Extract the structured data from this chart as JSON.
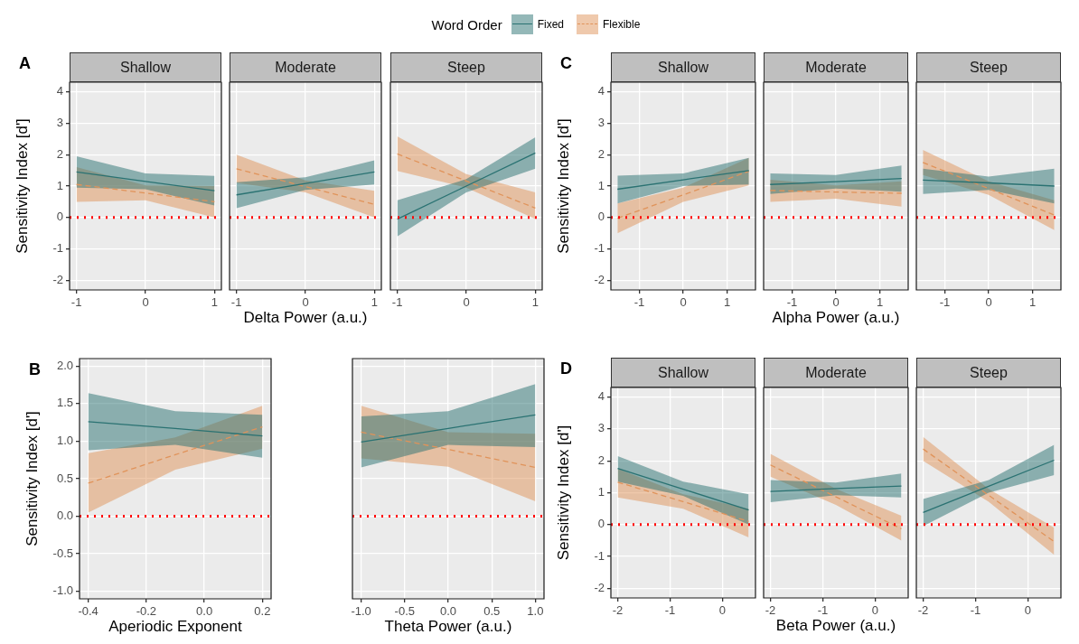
{
  "chart_data": [
    {
      "type": "line",
      "title": "Shallow",
      "ylabel": "Sensitivity Index [d']",
      "annotations": [
        "A"
      ],
      "legend": "top",
      "legend_title": "Word Order",
      "xlim": [
        -1.1,
        1.1
      ],
      "xticks": [
        -1,
        0,
        1
      ],
      "ylim": [
        -2.3,
        4.3
      ],
      "yticks": [
        -2,
        -1,
        0,
        1,
        2,
        3,
        4
      ],
      "grid": true,
      "ref_lines": [
        {
          "axis": "y",
          "value": 0,
          "color": "#ff0000",
          "line_style": "dotted"
        }
      ],
      "series": [
        {
          "name": "Fixed",
          "color": "#2a7272",
          "line_style": "solid",
          "x": [
            -1,
            0,
            1
          ],
          "values": [
            1.45,
            1.15,
            0.85
          ],
          "lower": [
            0.95,
            0.9,
            0.38
          ],
          "upper": [
            1.95,
            1.4,
            1.32
          ]
        },
        {
          "name": "Flexible",
          "color": "#e0935a",
          "line_style": "dashed",
          "x": [
            -1,
            0,
            1
          ],
          "values": [
            1.05,
            0.78,
            0.5
          ],
          "lower": [
            0.5,
            0.55,
            0.0
          ],
          "upper": [
            1.6,
            1.02,
            1.0
          ]
        }
      ]
    },
    {
      "type": "line",
      "title": "Moderate",
      "xlabel": "Delta Power (a.u.)",
      "tick_labels": "x",
      "xlim": [
        -1.1,
        1.1
      ],
      "xticks": [
        -1,
        0,
        1
      ],
      "ylim": [
        -2.3,
        4.3
      ],
      "yticks": [
        -2,
        -1,
        0,
        1,
        2,
        3,
        4
      ],
      "grid": true,
      "ref_lines": [
        {
          "axis": "y",
          "value": 0,
          "color": "#ff0000",
          "line_style": "dotted"
        }
      ],
      "series": [
        {
          "color": "#2a7272",
          "line_style": "solid",
          "x": [
            -1,
            0,
            1
          ],
          "values": [
            0.72,
            1.08,
            1.45
          ],
          "lower": [
            0.3,
            0.88,
            1.05
          ],
          "upper": [
            1.12,
            1.28,
            1.82
          ]
        },
        {
          "color": "#e0935a",
          "line_style": "dashed",
          "x": [
            -1,
            0,
            1
          ],
          "values": [
            1.55,
            0.98,
            0.42
          ],
          "lower": [
            1.1,
            0.8,
            0.0
          ],
          "upper": [
            2.0,
            1.18,
            0.85
          ]
        }
      ]
    },
    {
      "type": "line",
      "title": "Steep",
      "tick_labels": "x",
      "xlim": [
        -1.1,
        1.1
      ],
      "xticks": [
        -1,
        0,
        1
      ],
      "ylim": [
        -2.3,
        4.3
      ],
      "yticks": [
        -2,
        -1,
        0,
        1,
        2,
        3,
        4
      ],
      "grid": true,
      "ref_lines": [
        {
          "axis": "y",
          "value": 0,
          "color": "#ff0000",
          "line_style": "dotted"
        }
      ],
      "series": [
        {
          "color": "#2a7272",
          "line_style": "solid",
          "x": [
            -1,
            0,
            1
          ],
          "values": [
            -0.05,
            1.0,
            2.05
          ],
          "lower": [
            -0.6,
            0.8,
            1.55
          ],
          "upper": [
            0.55,
            1.22,
            2.55
          ]
        },
        {
          "color": "#e0935a",
          "line_style": "dashed",
          "x": [
            -1,
            0,
            1
          ],
          "values": [
            2.02,
            1.16,
            0.3
          ],
          "lower": [
            1.48,
            0.95,
            -0.05
          ],
          "upper": [
            2.58,
            1.38,
            0.8
          ]
        }
      ]
    },
    {
      "type": "line",
      "title": "Shallow",
      "ylabel": "Sensitivity Index [d']",
      "annotations": [
        "C"
      ],
      "xlim": [
        -1.65,
        1.65
      ],
      "xticks": [
        -1,
        0,
        1
      ],
      "ylim": [
        -2.3,
        4.3
      ],
      "yticks": [
        -2,
        -1,
        0,
        1,
        2,
        3,
        4
      ],
      "grid": true,
      "ref_lines": [
        {
          "axis": "y",
          "value": 0,
          "color": "#ff0000",
          "line_style": "dotted"
        }
      ],
      "series": [
        {
          "color": "#2a7272",
          "line_style": "solid",
          "x": [
            -1.5,
            0,
            1.5
          ],
          "values": [
            0.9,
            1.2,
            1.49
          ],
          "lower": [
            0.45,
            1.0,
            1.05
          ],
          "upper": [
            1.33,
            1.4,
            1.9
          ]
        },
        {
          "color": "#e0935a",
          "line_style": "dashed",
          "x": [
            -1.5,
            0,
            1.5
          ],
          "values": [
            -0.02,
            0.72,
            1.47
          ],
          "lower": [
            -0.5,
            0.5,
            1.02
          ],
          "upper": [
            0.45,
            0.95,
            1.9
          ]
        }
      ]
    },
    {
      "type": "line",
      "title": "Moderate",
      "xlabel": "Alpha Power (a.u.)",
      "tick_labels": "x",
      "xlim": [
        -1.65,
        1.65
      ],
      "xticks": [
        -1,
        0,
        1
      ],
      "ylim": [
        -2.3,
        4.3
      ],
      "yticks": [
        -2,
        -1,
        0,
        1,
        2,
        3,
        4
      ],
      "grid": true,
      "ref_lines": [
        {
          "axis": "y",
          "value": 0,
          "color": "#ff0000",
          "line_style": "dotted"
        }
      ],
      "series": [
        {
          "color": "#2a7272",
          "line_style": "solid",
          "x": [
            -1.5,
            0,
            1.5
          ],
          "values": [
            1.05,
            1.14,
            1.24
          ],
          "lower": [
            0.75,
            0.92,
            0.82
          ],
          "upper": [
            1.4,
            1.35,
            1.65
          ]
        },
        {
          "color": "#e0935a",
          "line_style": "dashed",
          "x": [
            -1.5,
            0,
            1.5
          ],
          "values": [
            0.86,
            0.81,
            0.77
          ],
          "lower": [
            0.5,
            0.6,
            0.35
          ],
          "upper": [
            1.2,
            1.02,
            1.15
          ]
        }
      ]
    },
    {
      "type": "line",
      "title": "Steep",
      "tick_labels": "x",
      "xlim": [
        -1.65,
        1.65
      ],
      "xticks": [
        -1,
        0,
        1
      ],
      "ylim": [
        -2.3,
        4.3
      ],
      "yticks": [
        -2,
        -1,
        0,
        1,
        2,
        3,
        4
      ],
      "grid": true,
      "ref_lines": [
        {
          "axis": "y",
          "value": 0,
          "color": "#ff0000",
          "line_style": "dotted"
        }
      ],
      "series": [
        {
          "color": "#2a7272",
          "line_style": "solid",
          "x": [
            -1.5,
            0,
            1.5
          ],
          "values": [
            1.19,
            1.1,
            1.0
          ],
          "lower": [
            0.75,
            0.88,
            0.45
          ],
          "upper": [
            1.55,
            1.3,
            1.55
          ]
        },
        {
          "color": "#e0935a",
          "line_style": "dashed",
          "x": [
            -1.5,
            0,
            1.5
          ],
          "values": [
            1.75,
            0.92,
            0.08
          ],
          "lower": [
            1.35,
            0.72,
            -0.4
          ],
          "upper": [
            2.15,
            1.15,
            0.55
          ]
        }
      ]
    },
    {
      "type": "line",
      "xlabel": "Aperiodic Exponent",
      "ylabel": "Sensitivity Index [d']",
      "annotations": [
        "B"
      ],
      "xlim": [
        -0.43,
        0.23
      ],
      "xticks": [
        -0.4,
        -0.2,
        {
          "value": 0,
          "label": "0.0"
        },
        0.2
      ],
      "ylim": [
        -1.1,
        2.1
      ],
      "yticks": [
        {
          "value": -1,
          "label": "-1.0"
        },
        -0.5,
        {
          "value": 0,
          "label": "0.0"
        },
        0.5,
        {
          "value": 1,
          "label": "1.0"
        },
        1.5,
        {
          "value": 2,
          "label": "2.0"
        }
      ],
      "grid": true,
      "ref_lines": [
        {
          "axis": "y",
          "value": 0,
          "color": "#ff0000",
          "line_style": "dotted"
        }
      ],
      "series": [
        {
          "color": "#2a7272",
          "line_style": "solid",
          "x": [
            -0.4,
            -0.1,
            0.2
          ],
          "values": [
            1.26,
            1.17,
            1.07
          ],
          "lower": [
            0.88,
            0.95,
            0.78
          ],
          "upper": [
            1.64,
            1.4,
            1.35
          ]
        },
        {
          "color": "#e0935a",
          "line_style": "dashed",
          "x": [
            -0.4,
            -0.1,
            0.2
          ],
          "values": [
            0.44,
            0.82,
            1.19
          ],
          "lower": [
            0.05,
            0.62,
            0.9
          ],
          "upper": [
            0.84,
            1.05,
            1.47
          ]
        }
      ]
    },
    {
      "type": "line",
      "xlabel": "Theta Power (a.u.)",
      "tick_labels": "x",
      "xlim": [
        -1.1,
        1.1
      ],
      "xticks": [
        {
          "value": -1,
          "label": "-1.0"
        },
        -0.5,
        {
          "value": 0,
          "label": "0.0"
        },
        0.5,
        {
          "value": 1,
          "label": "1.0"
        }
      ],
      "ylim": [
        -1.1,
        2.1
      ],
      "yticks": [
        -1,
        -0.5,
        0,
        0.5,
        1,
        1.5,
        2
      ],
      "grid": true,
      "ref_lines": [
        {
          "axis": "y",
          "value": 0,
          "color": "#ff0000",
          "line_style": "dotted"
        }
      ],
      "series": [
        {
          "color": "#2a7272",
          "line_style": "solid",
          "x": [
            -1,
            0,
            1
          ],
          "values": [
            0.99,
            1.17,
            1.35
          ],
          "lower": [
            0.65,
            0.95,
            0.92
          ],
          "upper": [
            1.33,
            1.4,
            1.76
          ]
        },
        {
          "color": "#e0935a",
          "line_style": "dashed",
          "x": [
            -1,
            0,
            1
          ],
          "values": [
            1.12,
            0.89,
            0.65
          ],
          "lower": [
            0.77,
            0.66,
            0.2
          ],
          "upper": [
            1.47,
            1.12,
            1.1
          ]
        }
      ]
    },
    {
      "type": "line",
      "title": "Shallow",
      "ylabel": "Sensitivity Index [d']",
      "annotations": [
        "D"
      ],
      "xlim": [
        -2.13,
        0.63
      ],
      "xticks": [
        -2,
        -1,
        0
      ],
      "ylim": [
        -2.3,
        4.3
      ],
      "yticks": [
        -2,
        -1,
        0,
        1,
        2,
        3,
        4
      ],
      "grid": true,
      "ref_lines": [
        {
          "axis": "y",
          "value": 0,
          "color": "#ff0000",
          "line_style": "dotted"
        }
      ],
      "series": [
        {
          "color": "#2a7272",
          "line_style": "solid",
          "x": [
            -2,
            -0.75,
            0.5
          ],
          "values": [
            1.76,
            1.11,
            0.46
          ],
          "lower": [
            1.35,
            0.9,
            0.0
          ],
          "upper": [
            2.15,
            1.35,
            0.95
          ]
        },
        {
          "color": "#e0935a",
          "line_style": "dashed",
          "x": [
            -2,
            -0.75,
            0.5
          ],
          "values": [
            1.33,
            0.72,
            0.1
          ],
          "lower": [
            0.85,
            0.5,
            -0.4
          ],
          "upper": [
            1.75,
            0.95,
            0.5
          ]
        }
      ]
    },
    {
      "type": "line",
      "title": "Moderate",
      "xlabel": "Beta Power (a.u.)",
      "tick_labels": "x",
      "xlim": [
        -2.13,
        0.63
      ],
      "xticks": [
        -2,
        -1,
        0
      ],
      "ylim": [
        -2.3,
        4.3
      ],
      "yticks": [
        -2,
        -1,
        0,
        1,
        2,
        3,
        4
      ],
      "grid": true,
      "ref_lines": [
        {
          "axis": "y",
          "value": 0,
          "color": "#ff0000",
          "line_style": "dotted"
        }
      ],
      "series": [
        {
          "color": "#2a7272",
          "line_style": "solid",
          "x": [
            -2,
            -0.75,
            0.5
          ],
          "values": [
            1.04,
            1.13,
            1.21
          ],
          "lower": [
            0.7,
            0.92,
            0.85
          ],
          "upper": [
            1.4,
            1.32,
            1.6
          ]
        },
        {
          "color": "#e0935a",
          "line_style": "dashed",
          "x": [
            -2,
            -0.75,
            0.5
          ],
          "values": [
            1.87,
            0.87,
            -0.13
          ],
          "lower": [
            1.5,
            0.62,
            -0.5
          ],
          "upper": [
            2.22,
            1.12,
            0.28
          ]
        }
      ]
    },
    {
      "type": "line",
      "title": "Steep",
      "tick_labels": "x",
      "xlim": [
        -2.13,
        0.63
      ],
      "xticks": [
        -2,
        -1,
        0
      ],
      "ylim": [
        -2.3,
        4.3
      ],
      "yticks": [
        -2,
        -1,
        0,
        1,
        2,
        3,
        4
      ],
      "grid": true,
      "ref_lines": [
        {
          "axis": "y",
          "value": 0,
          "color": "#ff0000",
          "line_style": "dotted"
        }
      ],
      "series": [
        {
          "color": "#2a7272",
          "line_style": "solid",
          "x": [
            -2,
            -0.75,
            0.5
          ],
          "values": [
            0.38,
            1.2,
            2.02
          ],
          "lower": [
            -0.05,
            1.0,
            1.55
          ],
          "upper": [
            0.8,
            1.4,
            2.5
          ]
        },
        {
          "color": "#e0935a",
          "line_style": "dashed",
          "x": [
            -2,
            -0.75,
            0.5
          ],
          "values": [
            2.37,
            0.92,
            -0.53
          ],
          "lower": [
            2.0,
            0.72,
            -0.95
          ],
          "upper": [
            2.75,
            1.12,
            -0.1
          ]
        }
      ]
    }
  ]
}
